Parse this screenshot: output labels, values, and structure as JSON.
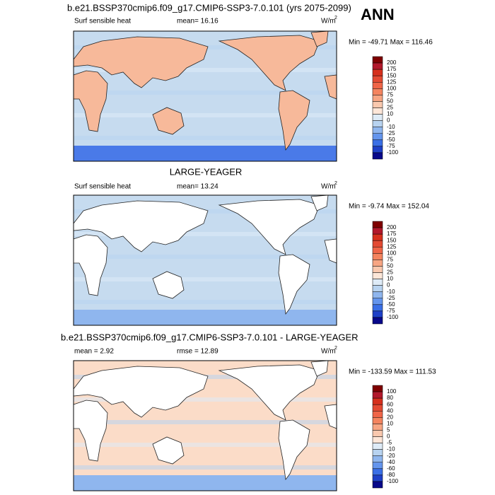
{
  "header": {
    "title": "ANN"
  },
  "panels": [
    {
      "title": "b.e21.BSSP370cmip6.f09_g17.CMIP6-SSP3-7.0.101 (yrs 2075-2099)",
      "left": "Surf sensible heat",
      "center": "mean=  16.16",
      "units": "W/m",
      "units_power": "2",
      "stats": "Min = -49.71 Max = 116.46",
      "colorbar": {
        "labels": [
          200,
          175,
          150,
          125,
          100,
          75,
          50,
          25,
          10,
          0,
          -10,
          -25,
          -50,
          -75,
          -100
        ],
        "colors": [
          "#7f0000",
          "#b2182b",
          "#d6301d",
          "#e34a33",
          "#ef6548",
          "#f4845f",
          "#f7a583",
          "#f9c8ae",
          "#fde6d8",
          "#deebf7",
          "#b8d3f0",
          "#8fb6ee",
          "#6495ed",
          "#3a6fe6",
          "#1e40c8",
          "#08088a"
        ]
      }
    },
    {
      "title": "LARGE-YEAGER",
      "left": "Surf sensible heat",
      "center": "mean=  13.24",
      "units": "W/m",
      "units_power": "2",
      "stats": "Min =  -9.74 Max = 152.04",
      "colorbar": {
        "labels": [
          200,
          175,
          150,
          125,
          100,
          75,
          50,
          25,
          10,
          0,
          -10,
          -25,
          -50,
          -75,
          -100
        ],
        "colors": [
          "#7f0000",
          "#b2182b",
          "#d6301d",
          "#e34a33",
          "#ef6548",
          "#f4845f",
          "#f7a583",
          "#f9c8ae",
          "#fde6d8",
          "#deebf7",
          "#b8d3f0",
          "#8fb6ee",
          "#6495ed",
          "#3a6fe6",
          "#1e40c8",
          "#08088a"
        ]
      }
    },
    {
      "title": "b.e21.BSSP370cmip6.f09_g17.CMIP6-SSP3-7.0.101 - LARGE-YEAGER",
      "left": "mean =  2.92",
      "center": "rmse =  12.89",
      "units": "W/m",
      "units_power": "2",
      "stats": "Min = -133.59 Max = 111.53",
      "colorbar": {
        "labels": [
          100,
          80,
          60,
          40,
          20,
          10,
          5,
          0,
          -5,
          -10,
          -20,
          -40,
          -60,
          -80,
          -100
        ],
        "colors": [
          "#7f0000",
          "#b2182b",
          "#d6301d",
          "#e34a33",
          "#ef6548",
          "#f4845f",
          "#f7a583",
          "#f9c8ae",
          "#fde6d8",
          "#deebf7",
          "#b8d3f0",
          "#8fb6ee",
          "#6495ed",
          "#3a6fe6",
          "#1e40c8",
          "#08088a"
        ]
      }
    }
  ]
}
